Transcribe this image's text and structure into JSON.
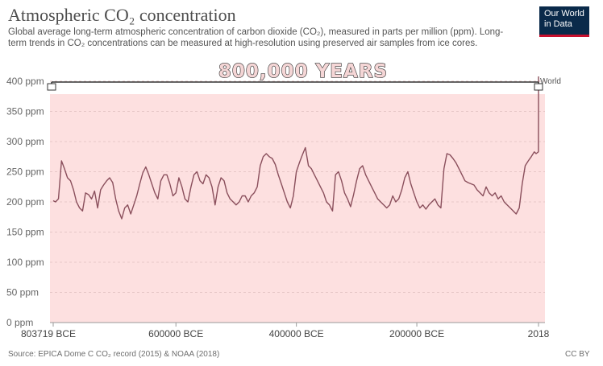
{
  "header": {
    "title": "Atmospheric CO₂ concentration",
    "subtitle": "Global average long-term atmospheric concentration of carbon dioxide (CO₂), measured in parts per million (ppm). Long-term trends in CO₂ concentrations can be measured at high-resolution using preserved air samples from ice cores."
  },
  "logo": {
    "line1": "Our World",
    "line2": "in Data"
  },
  "overlay": {
    "banner_text": "800,000 YEARS"
  },
  "footer": {
    "source": "Source: EPICA Dome C CO₂ record (2015) & NOAA (2018)",
    "license": "CC BY"
  },
  "colors": {
    "line": "#8a4f5c",
    "background_fill": "#fde0e0",
    "grid": "#e6c7c7",
    "logo_bg": "#0a2a4a",
    "logo_accent": "#c8102e"
  },
  "chart_data": {
    "type": "line",
    "title": "Atmospheric CO₂ concentration",
    "ylim": [
      0,
      400
    ],
    "y_ticks": [
      0,
      50,
      100,
      150,
      200,
      250,
      300,
      350,
      400
    ],
    "y_tick_labels": [
      "0 ppm",
      "50 ppm",
      "100 ppm",
      "150 ppm",
      "200 ppm",
      "250 ppm",
      "300 ppm",
      "350 ppm",
      "400 ppm"
    ],
    "x_tick_labels": [
      "803719 BCE",
      "600000 BCE",
      "400000 BCE",
      "200000 BCE",
      "2018"
    ],
    "x_tick_years": [
      -803719,
      -600000,
      -400000,
      -200000,
      2018
    ],
    "grid": true,
    "legend": "label at line end (right)",
    "series": [
      {
        "name": "World",
        "x": [
          -803719,
          -800000,
          -795000,
          -790000,
          -785000,
          -780000,
          -775000,
          -770000,
          -765000,
          -760000,
          -755000,
          -750000,
          -745000,
          -740000,
          -735000,
          -730000,
          -725000,
          -720000,
          -715000,
          -710000,
          -705000,
          -700000,
          -695000,
          -690000,
          -685000,
          -680000,
          -675000,
          -670000,
          -665000,
          -660000,
          -655000,
          -650000,
          -645000,
          -640000,
          -635000,
          -630000,
          -625000,
          -620000,
          -615000,
          -610000,
          -605000,
          -600000,
          -595000,
          -590000,
          -585000,
          -580000,
          -575000,
          -570000,
          -565000,
          -560000,
          -555000,
          -550000,
          -545000,
          -540000,
          -535000,
          -530000,
          -525000,
          -520000,
          -515000,
          -510000,
          -505000,
          -500000,
          -495000,
          -490000,
          -485000,
          -480000,
          -475000,
          -470000,
          -465000,
          -460000,
          -455000,
          -450000,
          -445000,
          -440000,
          -435000,
          -430000,
          -425000,
          -420000,
          -415000,
          -410000,
          -405000,
          -400000,
          -395000,
          -390000,
          -385000,
          -380000,
          -375000,
          -370000,
          -365000,
          -360000,
          -355000,
          -350000,
          -345000,
          -340000,
          -335000,
          -330000,
          -325000,
          -320000,
          -315000,
          -310000,
          -305000,
          -300000,
          -295000,
          -290000,
          -285000,
          -280000,
          -275000,
          -270000,
          -265000,
          -260000,
          -255000,
          -250000,
          -245000,
          -240000,
          -235000,
          -230000,
          -225000,
          -220000,
          -215000,
          -210000,
          -205000,
          -200000,
          -195000,
          -190000,
          -185000,
          -180000,
          -175000,
          -170000,
          -165000,
          -160000,
          -155000,
          -150000,
          -145000,
          -140000,
          -135000,
          -130000,
          -125000,
          -120000,
          -115000,
          -110000,
          -105000,
          -100000,
          -95000,
          -90000,
          -85000,
          -80000,
          -75000,
          -70000,
          -65000,
          -60000,
          -55000,
          -50000,
          -45000,
          -40000,
          -35000,
          -30000,
          -25000,
          -20000,
          -15000,
          -10000,
          -5000,
          -2000,
          1800,
          1900,
          1950,
          1980,
          2000,
          2018
        ],
        "values": [
          202,
          200,
          205,
          268,
          255,
          240,
          235,
          220,
          200,
          190,
          185,
          215,
          212,
          205,
          218,
          190,
          220,
          228,
          235,
          240,
          232,
          205,
          185,
          172,
          190,
          195,
          180,
          195,
          210,
          230,
          248,
          258,
          245,
          230,
          215,
          205,
          235,
          245,
          245,
          230,
          210,
          215,
          240,
          225,
          205,
          200,
          225,
          245,
          250,
          235,
          230,
          245,
          240,
          225,
          195,
          225,
          240,
          235,
          215,
          205,
          200,
          195,
          200,
          210,
          210,
          200,
          210,
          215,
          225,
          260,
          275,
          280,
          275,
          272,
          262,
          245,
          230,
          215,
          200,
          190,
          210,
          250,
          265,
          278,
          290,
          260,
          255,
          245,
          235,
          225,
          215,
          200,
          195,
          185,
          245,
          250,
          235,
          215,
          205,
          192,
          212,
          235,
          255,
          260,
          245,
          235,
          225,
          215,
          205,
          200,
          195,
          190,
          195,
          210,
          200,
          205,
          220,
          240,
          250,
          230,
          215,
          200,
          190,
          195,
          188,
          195,
          200,
          205,
          195,
          190,
          255,
          280,
          278,
          272,
          265,
          255,
          245,
          235,
          232,
          230,
          228,
          220,
          215,
          210,
          225,
          215,
          210,
          215,
          205,
          210,
          200,
          195,
          190,
          185,
          180,
          190,
          230,
          260,
          268,
          275,
          283,
          280,
          283,
          284,
          310,
          338,
          369,
          408
        ]
      }
    ]
  }
}
